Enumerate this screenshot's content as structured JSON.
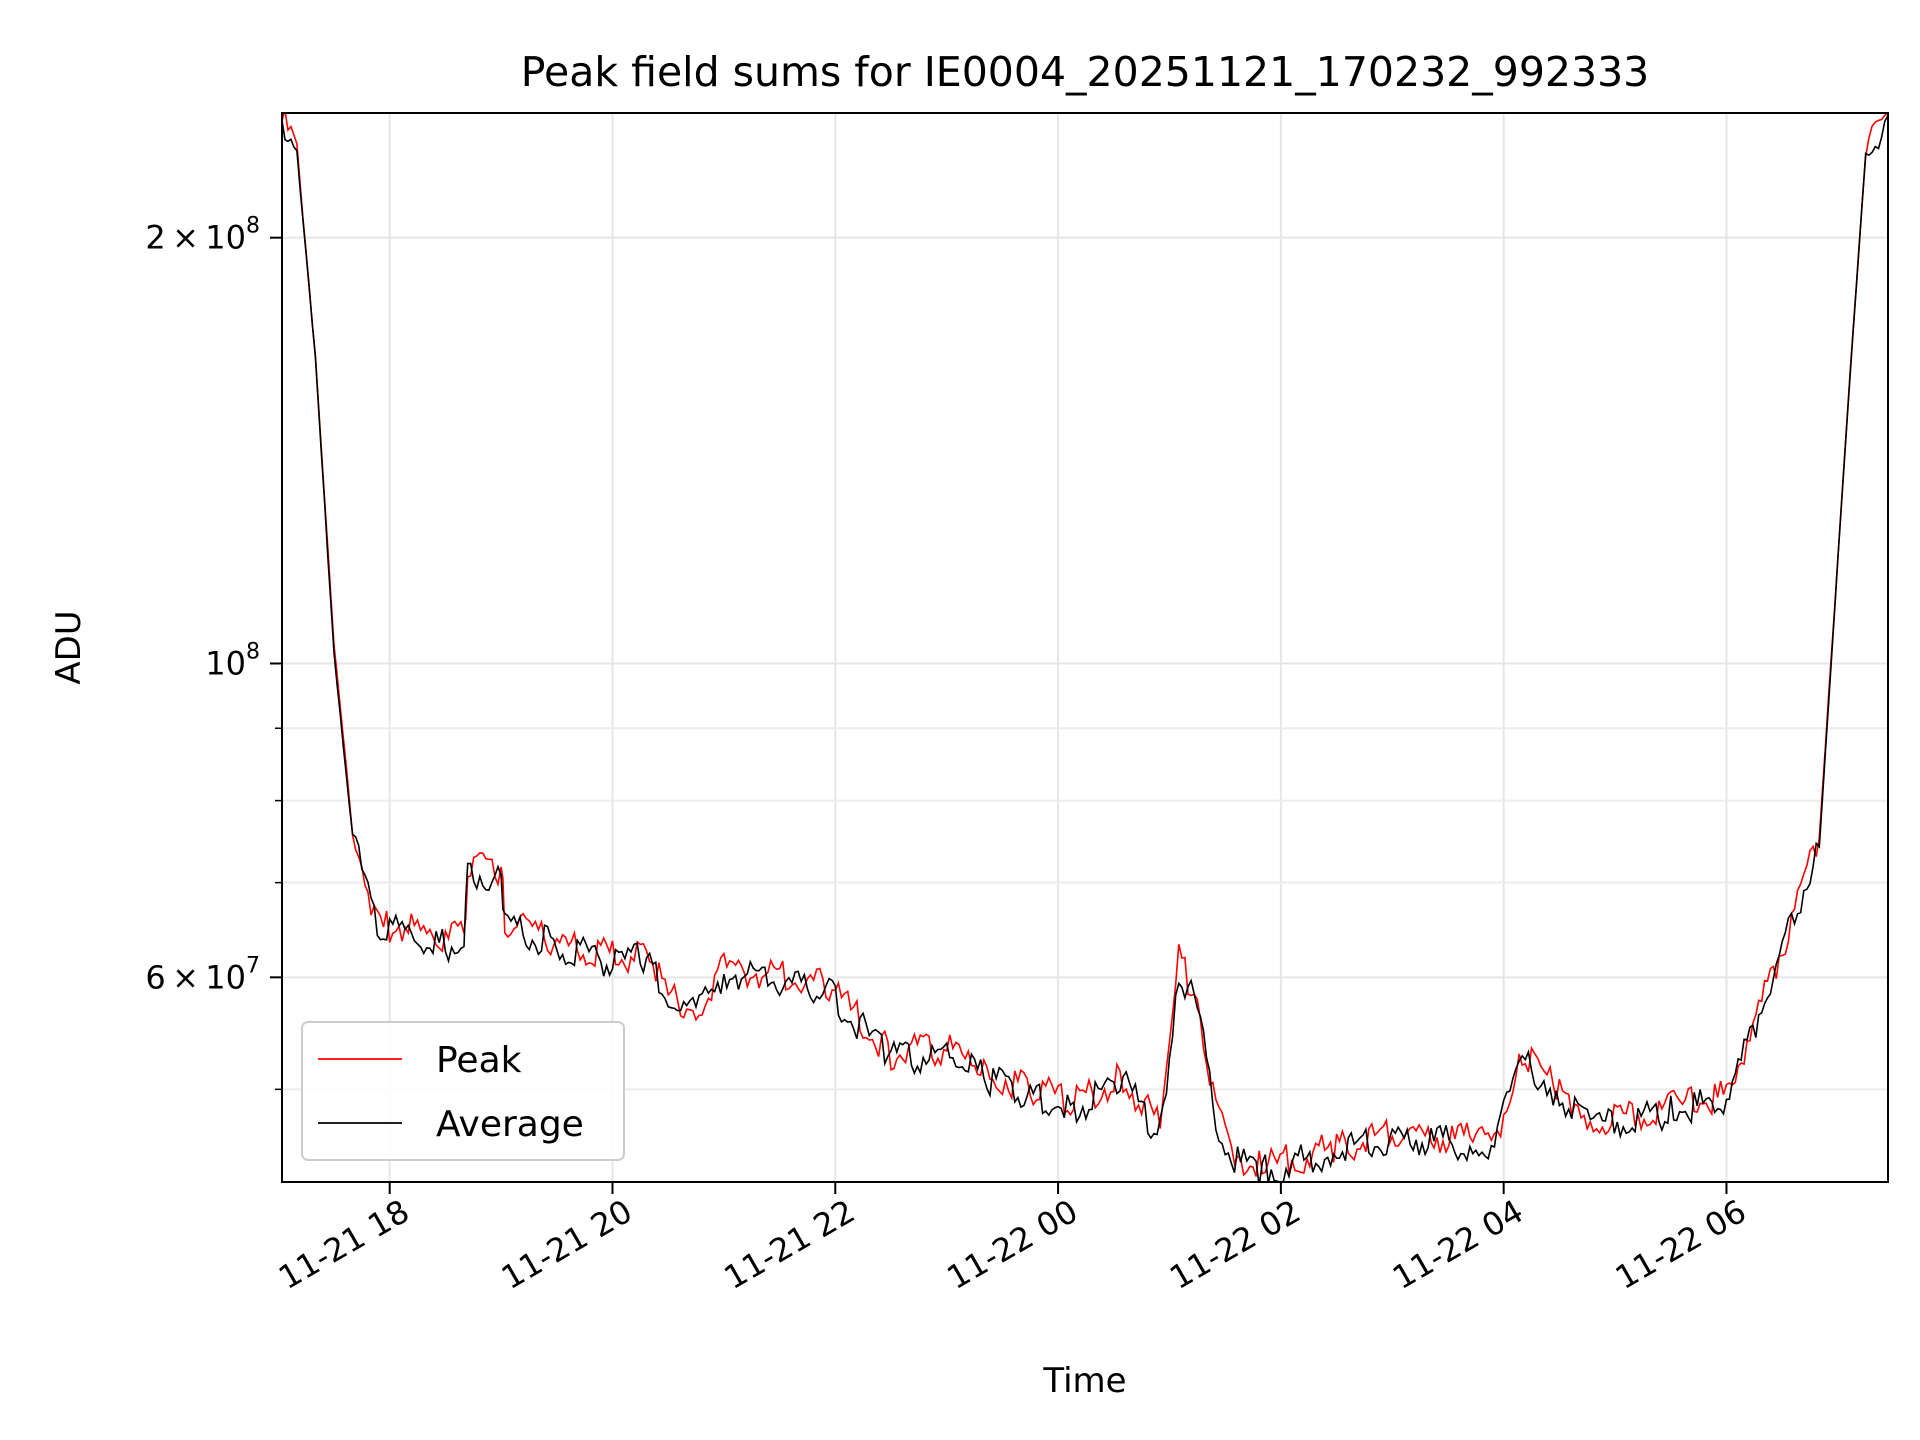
{
  "chart_data": {
    "type": "line",
    "title": "Peak field sums for IE0004_20251121_170232_992333",
    "xlabel": "Time",
    "ylabel": "ADU",
    "yscale": "log",
    "xlim": [
      "2025-11-21 17:02",
      "2025-11-22 07:27"
    ],
    "ylim": [
      43000000,
      245000000
    ],
    "x_ticks": [
      {
        "x": "2025-11-21 18:00",
        "label": "11-21 18"
      },
      {
        "x": "2025-11-21 20:00",
        "label": "11-21 20"
      },
      {
        "x": "2025-11-21 22:00",
        "label": "11-21 22"
      },
      {
        "x": "2025-11-22 00:00",
        "label": "11-22 00"
      },
      {
        "x": "2025-11-22 02:00",
        "label": "11-22 02"
      },
      {
        "x": "2025-11-22 04:00",
        "label": "11-22 04"
      },
      {
        "x": "2025-11-22 06:00",
        "label": "11-22 06"
      }
    ],
    "y_major_ticks": [
      {
        "value": 100000000,
        "mantissa": "10",
        "exp": "8",
        "style": "pow"
      },
      {
        "value": 200000000,
        "mantissa": "2",
        "exp": "8",
        "style": "sci"
      },
      {
        "value": 60000000,
        "mantissa": "6",
        "exp": "7",
        "style": "sci"
      }
    ],
    "y_minor_ticks": [
      50000000,
      70000000,
      80000000,
      90000000
    ],
    "grid": true,
    "legend": "lower-left",
    "series": [
      {
        "name": "Peak",
        "color": "#ff0000",
        "x": [
          "2025-11-21 17:02",
          "2025-11-21 17:10",
          "2025-11-21 17:20",
          "2025-11-21 17:30",
          "2025-11-21 17:40",
          "2025-11-21 17:50",
          "2025-11-21 17:55",
          "2025-11-21 18:05",
          "2025-11-21 18:30",
          "2025-11-21 18:40",
          "2025-11-21 18:42",
          "2025-11-21 19:00",
          "2025-11-21 19:02",
          "2025-11-21 19:30",
          "2025-11-21 20:00",
          "2025-11-21 20:20",
          "2025-11-21 20:30",
          "2025-11-21 20:45",
          "2025-11-21 21:00",
          "2025-11-21 21:30",
          "2025-11-21 21:55",
          "2025-11-21 22:05",
          "2025-11-21 22:30",
          "2025-11-21 23:00",
          "2025-11-21 23:20",
          "2025-11-21 23:45",
          "2025-11-22 00:10",
          "2025-11-22 00:35",
          "2025-11-22 00:55",
          "2025-11-22 01:05",
          "2025-11-22 01:15",
          "2025-11-22 01:25",
          "2025-11-22 01:35",
          "2025-11-22 01:50",
          "2025-11-22 02:30",
          "2025-11-22 03:00",
          "2025-11-22 03:45",
          "2025-11-22 03:55",
          "2025-11-22 04:10",
          "2025-11-22 04:30",
          "2025-11-22 04:50",
          "2025-11-22 05:30",
          "2025-11-22 06:00",
          "2025-11-22 06:30",
          "2025-11-22 06:50",
          "2025-11-22 07:05",
          "2025-11-22 07:15",
          "2025-11-22 07:27"
        ],
        "values": [
          242000000,
          232000000,
          165000000,
          103000000,
          76000000,
          68000000,
          65000000,
          65500000,
          63500000,
          64500000,
          71500000,
          71500000,
          66000000,
          63500000,
          62000000,
          62500000,
          58000000,
          57000000,
          61000000,
          60000000,
          59500000,
          57500000,
          53000000,
          53500000,
          51500000,
          50000000,
          49000000,
          51000000,
          47000000,
          62000000,
          58000000,
          48000000,
          45000000,
          44000000,
          45500000,
          46500000,
          46000000,
          46000000,
          53000000,
          50000000,
          47500000,
          48500000,
          49500000,
          63000000,
          75000000,
          150000000,
          230000000,
          245000000
        ]
      },
      {
        "name": "Average",
        "color": "#000000",
        "x": [
          "2025-11-21 17:02",
          "2025-11-21 17:10",
          "2025-11-21 17:20",
          "2025-11-21 17:30",
          "2025-11-21 17:40",
          "2025-11-21 17:50",
          "2025-11-21 17:55",
          "2025-11-21 18:05",
          "2025-11-21 18:30",
          "2025-11-21 18:40",
          "2025-11-21 18:42",
          "2025-11-21 19:00",
          "2025-11-21 19:02",
          "2025-11-21 19:30",
          "2025-11-21 20:00",
          "2025-11-21 20:20",
          "2025-11-21 20:30",
          "2025-11-21 20:45",
          "2025-11-21 21:00",
          "2025-11-21 21:30",
          "2025-11-21 21:55",
          "2025-11-21 22:05",
          "2025-11-21 22:30",
          "2025-11-21 23:00",
          "2025-11-21 23:20",
          "2025-11-21 23:45",
          "2025-11-22 00:10",
          "2025-11-22 00:35",
          "2025-11-22 00:55",
          "2025-11-22 01:05",
          "2025-11-22 01:15",
          "2025-11-22 01:25",
          "2025-11-22 01:35",
          "2025-11-22 01:50",
          "2025-11-22 02:30",
          "2025-11-22 03:00",
          "2025-11-22 03:45",
          "2025-11-22 03:55",
          "2025-11-22 04:10",
          "2025-11-22 04:30",
          "2025-11-22 04:50",
          "2025-11-22 05:30",
          "2025-11-22 06:00",
          "2025-11-22 06:30",
          "2025-11-22 06:50",
          "2025-11-22 07:05",
          "2025-11-22 07:15",
          "2025-11-22 07:27"
        ],
        "values": [
          241000000,
          231000000,
          164000000,
          102000000,
          75500000,
          67500000,
          64500000,
          65000000,
          63000000,
          64000000,
          71000000,
          71000000,
          65500000,
          63000000,
          61500000,
          62000000,
          57500000,
          56500000,
          60500000,
          59500000,
          59000000,
          57000000,
          52500000,
          53000000,
          51000000,
          49500000,
          48500000,
          50500000,
          46500000,
          61000000,
          57000000,
          47500000,
          44500000,
          43700000,
          45200000,
          46200000,
          45700000,
          45700000,
          52500000,
          49500000,
          47200000,
          48200000,
          49200000,
          62500000,
          74500000,
          149000000,
          229000000,
          244000000
        ]
      }
    ]
  }
}
